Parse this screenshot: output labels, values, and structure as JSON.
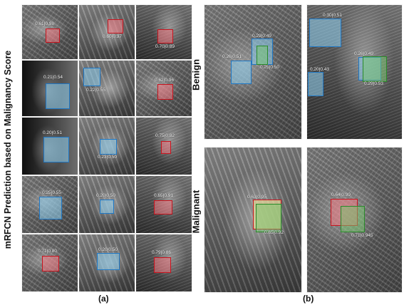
{
  "figure": {
    "ylabel": "mRFCN Prediction based on Malignancy Score",
    "caption_a": "(a)",
    "caption_b": "(b)",
    "row_benign": "Benign",
    "row_malignant": "Malignant"
  },
  "panel_a": [
    {
      "label": "0.61|0.98",
      "color": "red"
    },
    {
      "label": "0.60|0.97",
      "color": "red"
    },
    {
      "label": "0.70|0.89",
      "color": "red"
    },
    {
      "label": "0.21|0.54",
      "color": "blue"
    },
    {
      "label": "0.22|0.55",
      "color": "blue"
    },
    {
      "label": "0.62|0.96",
      "color": "red"
    },
    {
      "label": "0.20|0.51",
      "color": "blue"
    },
    {
      "label": "0.23|0.50",
      "color": "blue"
    },
    {
      "label": "0.75|0.82",
      "color": "red"
    },
    {
      "label": "0.25|0.55",
      "color": "blue"
    },
    {
      "label": "0.20|0.50",
      "color": "blue"
    },
    {
      "label": "0.65|0.91",
      "color": "red"
    },
    {
      "label": "0.71|0.80",
      "color": "red"
    },
    {
      "label": "0.20|0.50",
      "color": "blue"
    },
    {
      "label": "0.79|0.86",
      "color": "red"
    }
  ],
  "panel_b": {
    "benign_left": [
      "0.26|0.51",
      "0.29|0.49",
      "0.25|0.50"
    ],
    "benign_right": [
      "0.30|0.51",
      "0.26|0.49",
      "0.20|0.43",
      "0.29|0.53"
    ],
    "malignant_left": [
      "0.63|0.95",
      "0.65|0.92"
    ],
    "malignant_right": [
      "0.64|0.99",
      "0.71|0.945"
    ]
  },
  "colors": {
    "malignant_box": "#c8141e",
    "benign_box": "#1f77c4",
    "ground_truth": "#2a8a2a"
  }
}
